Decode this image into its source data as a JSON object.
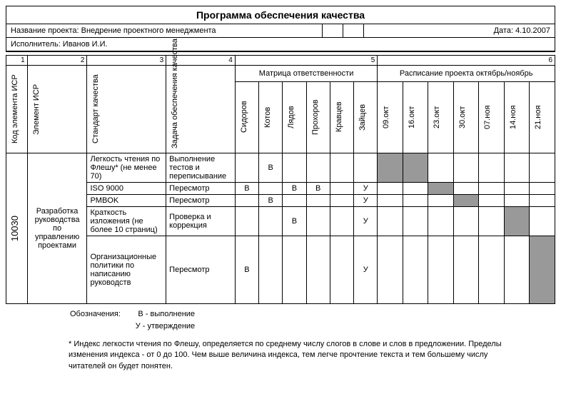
{
  "title": "Программа обеспечения качества",
  "project_label": "Название проекта: Внедрение проектного менеджмента",
  "date_label": "Дата: 4.10.2007",
  "performer_label": "Исполнитель: Иванов И.И.",
  "col_numbers": [
    "1",
    "2",
    "3",
    "4",
    "5",
    "6"
  ],
  "col_headers": {
    "code": "Код элемента ИСР",
    "element": "Элемент ИСР",
    "standard": "Стандарт качества",
    "task": "Задача обеспечения качества",
    "matrix": "Матрица ответственности",
    "schedule": "Расписание проекта октябрь/ноябрь"
  },
  "people": [
    "Сидоров",
    "Котов",
    "Лядов",
    "Прохоров",
    "Кравцев",
    "Зайцев"
  ],
  "dates": [
    "09.окт",
    "16.окт",
    "23.окт",
    "30.окт",
    "07.ноя",
    "14.ноя",
    "21.ноя"
  ],
  "wbs_code": "10030",
  "wbs_name": "Разработка руководства по управлению проектами",
  "rows": [
    {
      "standard": "Легкость чтения по Флешу* (не менее 70)",
      "task": "Выполнение тестов и переписывание",
      "resp": [
        "",
        "В",
        "",
        "",
        "",
        ""
      ],
      "sched_shaded": [
        true,
        true,
        false,
        false,
        false,
        false,
        false
      ]
    },
    {
      "standard": "ISO 9000",
      "task": "Пересмотр",
      "resp": [
        "В",
        "",
        "В",
        "В",
        "",
        "У"
      ],
      "sched_shaded": [
        false,
        false,
        true,
        false,
        false,
        false,
        false
      ]
    },
    {
      "standard": "PMBOK",
      "task": "Пересмотр",
      "resp": [
        "",
        "В",
        "",
        "",
        "",
        "У"
      ],
      "sched_shaded": [
        false,
        false,
        false,
        true,
        false,
        false,
        false
      ]
    },
    {
      "standard": "Краткость изложения (не более 10 страниц)",
      "task": "Проверка и коррекция",
      "resp": [
        "",
        "",
        "В",
        "",
        "",
        "У"
      ],
      "sched_shaded": [
        false,
        false,
        false,
        false,
        false,
        true,
        false
      ]
    },
    {
      "standard": "Организационные политики по написанию руководств",
      "task": "Пересмотр",
      "resp": [
        "В",
        "",
        "",
        "",
        "",
        "У"
      ],
      "sched_shaded": [
        false,
        false,
        false,
        false,
        false,
        false,
        true
      ]
    }
  ],
  "legend_label": "Обозначения:",
  "legend_lines": [
    "В - выполнение",
    "У - утверждение"
  ],
  "footnote": "* Индекс легкости чтения по Флешу, определяется по среднему числу слогов в слове и слов в предложении. Пределы изменения индекса - от 0 до 100. Чем выше величина индекса, тем легче прочтение текста и тем большему числу читателей он будет понятен.",
  "colors": {
    "shaded": "#999999",
    "border": "#000000",
    "bg": "#ffffff"
  },
  "col_widths": {
    "code": 26,
    "element": 85,
    "standard": 110,
    "task": 95,
    "person": 30,
    "date": 32
  }
}
